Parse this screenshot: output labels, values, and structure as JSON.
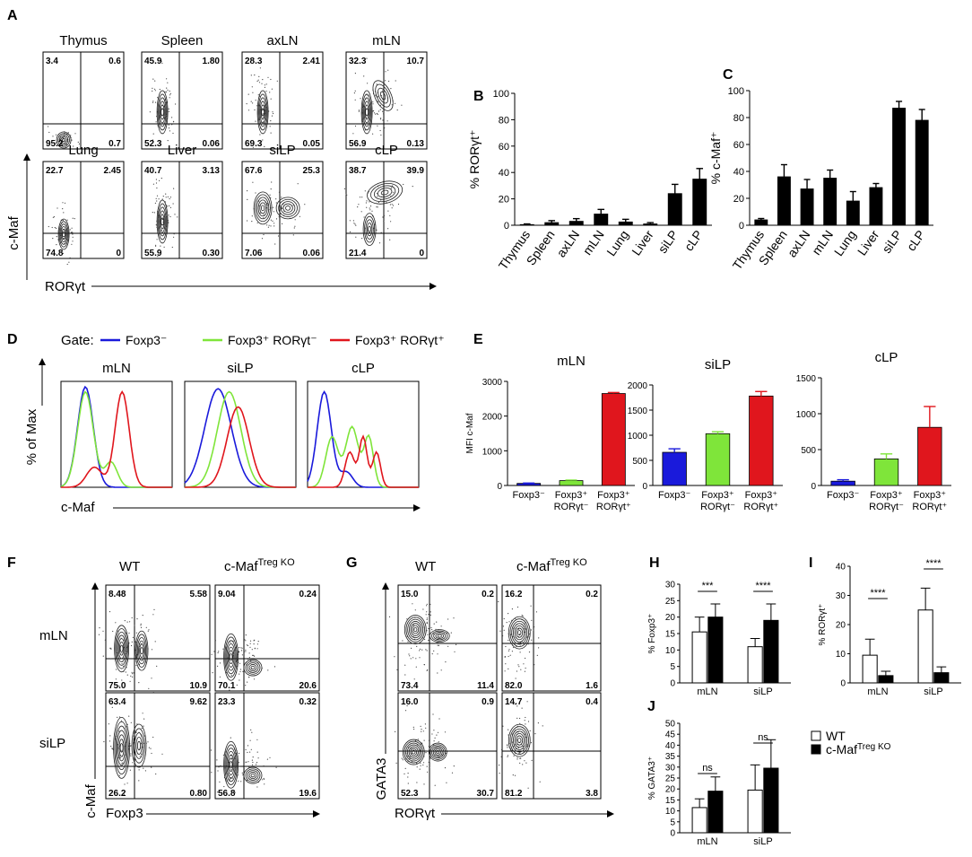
{
  "panels": {
    "A": {
      "label": "A",
      "ylabel": "c-Maf",
      "xlabel": "RORγt",
      "plots": [
        {
          "title": "Thymus",
          "ul": "3.4",
          "ur": "0.6",
          "ll": "95.2",
          "lr": "0.7",
          "pattern": "lowleft"
        },
        {
          "title": "Spleen",
          "ul": "45.9",
          "ur": "1.80",
          "ll": "52.3",
          "lr": "0.06",
          "pattern": "column"
        },
        {
          "title": "axLN",
          "ul": "28.3",
          "ur": "2.41",
          "ll": "69.3",
          "lr": "0.05",
          "pattern": "column"
        },
        {
          "title": "mLN",
          "ul": "32.3",
          "ur": "10.7",
          "ll": "56.9",
          "lr": "0.13",
          "pattern": "columndiag"
        },
        {
          "title": "Lung",
          "ul": "22.7",
          "ur": "2.45",
          "ll": "74.8",
          "lr": "0",
          "pattern": "columnlow"
        },
        {
          "title": "Liver",
          "ul": "40.7",
          "ur": "3.13",
          "ll": "55.9",
          "lr": "0.30",
          "pattern": "column"
        },
        {
          "title": "siLP",
          "ul": "67.6",
          "ur": "25.3",
          "ll": "7.06",
          "lr": "0.06",
          "pattern": "twoblob"
        },
        {
          "title": "cLP",
          "ul": "38.7",
          "ur": "39.9",
          "ll": "21.4",
          "lr": "0",
          "pattern": "arc"
        }
      ]
    },
    "D": {
      "label": "D",
      "gate_label": "Gate:",
      "legend": [
        {
          "name": "Foxp3⁻",
          "color": "#1a1adb"
        },
        {
          "name": "Foxp3⁺ RORγt⁻",
          "color": "#7fe53a"
        },
        {
          "name": "Foxp3⁺ RORγt⁺",
          "color": "#e0161d"
        }
      ],
      "ylabel": "% of Max",
      "xlabel": "c-Maf",
      "titles": [
        "mLN",
        "siLP",
        "cLP"
      ]
    },
    "F": {
      "label": "F",
      "col_labels": [
        "WT",
        "c-Maf"
      ],
      "col_sup": "Treg KO",
      "row_labels": [
        "mLN",
        "siLP"
      ],
      "ylabel": "c-Maf",
      "xlabel": "Foxp3",
      "plots": [
        {
          "ul": "8.48",
          "ur": "5.58",
          "ll": "75.0",
          "lr": "10.9",
          "pattern": "blob2"
        },
        {
          "ul": "9.04",
          "ur": "0.24",
          "ll": "70.1",
          "lr": "20.6",
          "pattern": "blob2low"
        },
        {
          "ul": "63.4",
          "ur": "9.62",
          "ll": "26.2",
          "lr": "0.80",
          "pattern": "tallblob"
        },
        {
          "ul": "23.3",
          "ur": "0.32",
          "ll": "56.8",
          "lr": "19.6",
          "pattern": "blob2low"
        }
      ]
    },
    "G": {
      "label": "G",
      "col_labels": [
        "WT",
        "c-Maf"
      ],
      "col_sup": "Treg KO",
      "ylabel": "GATA3",
      "xlabel": "RORγt",
      "plots": [
        {
          "ul": "15.0",
          "ur": "0.2",
          "ll": "73.4",
          "lr": "11.4",
          "pattern": "gblob2"
        },
        {
          "ul": "16.2",
          "ur": "0.2",
          "ll": "82.0",
          "lr": "1.6",
          "pattern": "gblob1"
        },
        {
          "ul": "16.0",
          "ur": "0.9",
          "ll": "52.3",
          "lr": "30.7",
          "pattern": "gblob2b"
        },
        {
          "ul": "14.7",
          "ur": "0.4",
          "ll": "81.2",
          "lr": "3.8",
          "pattern": "gblob1"
        }
      ]
    },
    "J_legend": {
      "items": [
        {
          "name": "WT",
          "fill": "#ffffff"
        },
        {
          "name": "c-Maf",
          "sup": "Treg KO",
          "fill": "#000000"
        }
      ]
    }
  },
  "chart_data": [
    {
      "id": "B",
      "label": "B",
      "type": "bar",
      "ylabel": "% RORγt⁺",
      "categories": [
        "Thymus",
        "Spleen",
        "axLN",
        "mLN",
        "Lung",
        "Liver",
        "siLP",
        "cLP"
      ],
      "values": [
        0.5,
        2,
        3,
        8.5,
        2.5,
        1,
        24,
        35
      ],
      "errors": [
        0.5,
        1.5,
        2,
        3.5,
        2,
        1,
        7,
        8
      ],
      "colors": [
        "#000000"
      ],
      "ylim": [
        0,
        100
      ],
      "yticks": [
        0,
        20,
        40,
        60,
        80,
        100
      ]
    },
    {
      "id": "C",
      "label": "C",
      "type": "bar",
      "ylabel": "% c-Maf⁺",
      "categories": [
        "Thymus",
        "Spleen",
        "axLN",
        "mLN",
        "Lung",
        "Liver",
        "siLP",
        "cLP"
      ],
      "values": [
        4,
        36,
        27,
        35,
        18,
        28,
        87,
        78
      ],
      "errors": [
        1,
        9,
        7,
        6,
        7,
        3,
        5,
        8
      ],
      "colors": [
        "#000000"
      ],
      "ylim": [
        0,
        100
      ],
      "yticks": [
        0,
        20,
        40,
        60,
        80,
        100
      ]
    },
    {
      "id": "E1",
      "label": "E",
      "type": "bar",
      "title": "mLN",
      "ylabel": "MFI c-Maf",
      "categories": [
        "Foxp3⁻",
        "Foxp3⁺ RORγt⁻",
        "Foxp3⁺ RORγt⁺"
      ],
      "values": [
        60,
        140,
        2650
      ],
      "errors": [
        10,
        15,
        30
      ],
      "colors": [
        "#1a1adb",
        "#7fe53a",
        "#e0161d"
      ],
      "ylim": [
        0,
        3000
      ],
      "yticks": [
        0,
        1000,
        2000,
        3000
      ]
    },
    {
      "id": "E2",
      "type": "bar",
      "title": "siLP",
      "categories": [
        "Foxp3⁻",
        "Foxp3⁺ RORγt⁻",
        "Foxp3⁺ RORγt⁺"
      ],
      "values": [
        660,
        1030,
        1780
      ],
      "errors": [
        70,
        40,
        90
      ],
      "colors": [
        "#1a1adb",
        "#7fe53a",
        "#e0161d"
      ],
      "ylim": [
        0,
        2000
      ],
      "yticks": [
        0,
        500,
        1000,
        1500,
        2000
      ]
    },
    {
      "id": "E3",
      "type": "bar",
      "title": "cLP",
      "categories": [
        "Foxp3⁻",
        "Foxp3⁺ RORγt⁻",
        "Foxp3⁺ RORγt⁺"
      ],
      "values": [
        60,
        370,
        810
      ],
      "errors": [
        20,
        70,
        290
      ],
      "colors": [
        "#1a1adb",
        "#7fe53a",
        "#e0161d"
      ],
      "ylim": [
        0,
        1500
      ],
      "yticks": [
        0,
        500,
        1000,
        1500
      ]
    },
    {
      "id": "H",
      "label": "H",
      "type": "bar",
      "ylabel": "% Foxp3⁺",
      "groups": [
        "mLN",
        "siLP"
      ],
      "series": [
        {
          "name": "WT",
          "values": [
            15.5,
            11
          ],
          "errors": [
            4.5,
            2.5
          ]
        },
        {
          "name": "c-Maf Treg KO",
          "values": [
            20,
            19
          ],
          "errors": [
            4,
            5
          ]
        }
      ],
      "significance": [
        "***",
        "****"
      ],
      "ylim": [
        0,
        30
      ],
      "yticks": [
        0,
        5,
        10,
        15,
        20,
        25,
        30
      ]
    },
    {
      "id": "I",
      "label": "I",
      "type": "bar",
      "ylabel": "% RORγt⁺",
      "groups": [
        "mLN",
        "siLP"
      ],
      "series": [
        {
          "name": "WT",
          "values": [
            9.5,
            25
          ],
          "errors": [
            5.5,
            7.5
          ]
        },
        {
          "name": "c-Maf Treg KO",
          "values": [
            2.5,
            3.5
          ],
          "errors": [
            1.5,
            2
          ]
        }
      ],
      "significance": [
        "****",
        "****"
      ],
      "ylim": [
        0,
        40
      ],
      "yticks": [
        0,
        10,
        20,
        30,
        40
      ]
    },
    {
      "id": "J",
      "label": "J",
      "type": "bar",
      "ylabel": "% GATA3⁺",
      "groups": [
        "mLN",
        "siLP"
      ],
      "series": [
        {
          "name": "WT",
          "values": [
            11.5,
            19.5
          ],
          "errors": [
            4,
            11.5
          ]
        },
        {
          "name": "c-Maf Treg KO",
          "values": [
            19,
            29.5
          ],
          "errors": [
            6.5,
            13
          ]
        }
      ],
      "significance": [
        "ns",
        "ns"
      ],
      "ylim": [
        0,
        50
      ],
      "yticks": [
        0,
        5,
        10,
        15,
        20,
        25,
        30,
        35,
        40,
        45,
        50
      ]
    }
  ]
}
